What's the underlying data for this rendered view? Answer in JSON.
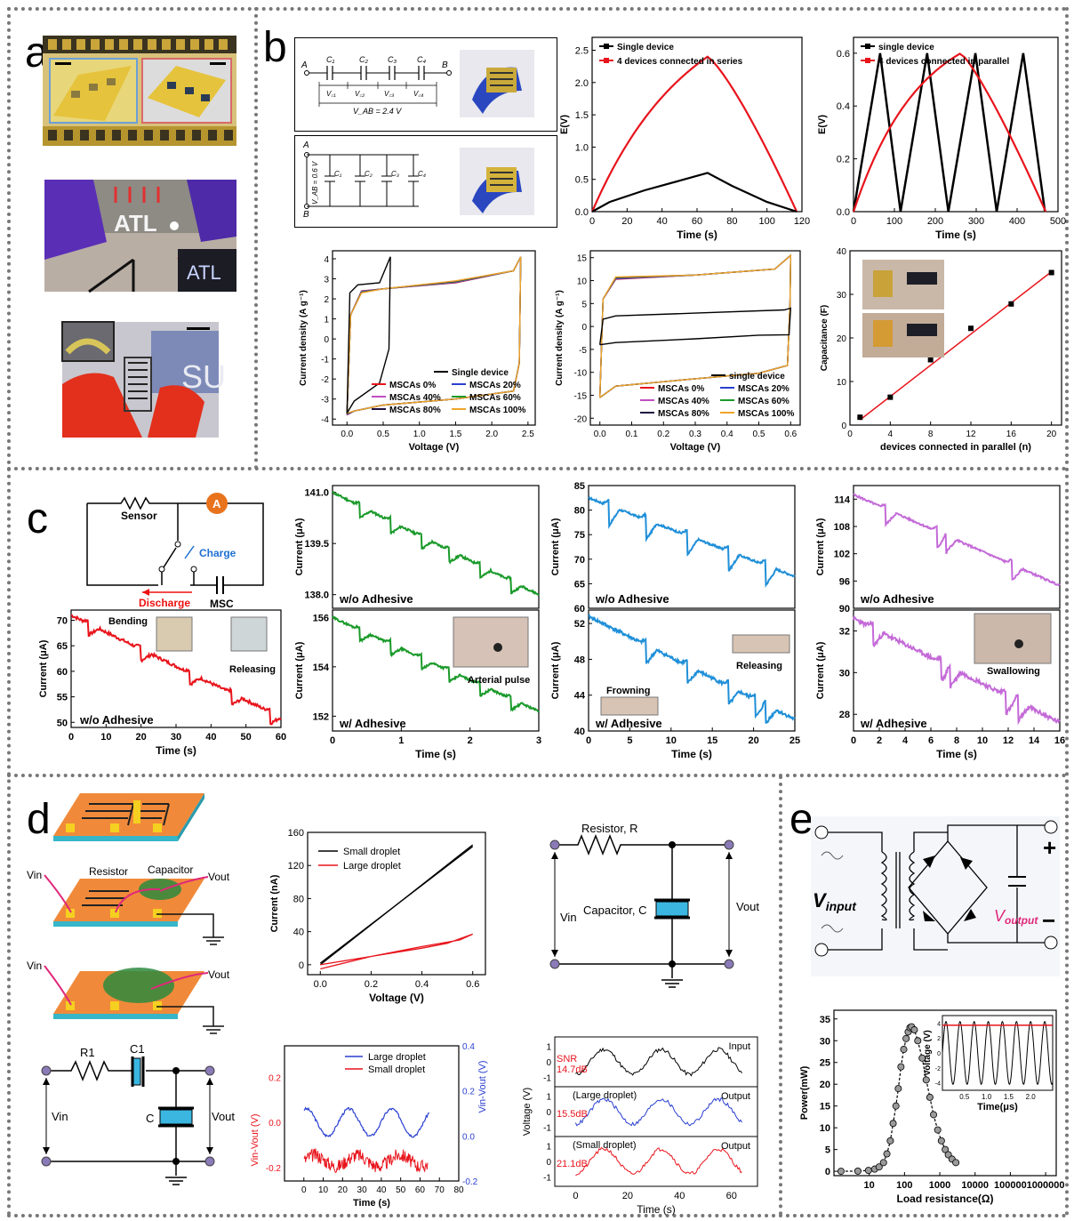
{
  "panel_labels": [
    "a",
    "b",
    "c",
    "d",
    "e"
  ],
  "colors": {
    "black": "#000000",
    "red": "#e8141c",
    "green": "#1a9a2a",
    "blue": "#1f8fd8",
    "purple": "#b153d6",
    "purple_line": "#c46ad8",
    "orange": "#f0a52a"
  },
  "a": {
    "photo1": {
      "desc_icon": "flexible-electrode-strip-photo"
    },
    "photo2": {
      "inset_text": "ATL",
      "main_text": "ATL"
    },
    "photo3": {
      "watermark": "SU"
    }
  },
  "b": {
    "circuit_series": {
      "A": "A",
      "B": "B",
      "caps": [
        "C₁",
        "C₂",
        "C₃",
        "C₄"
      ],
      "vcs": [
        "V꜀₁",
        "V꜀₂",
        "V꜀₃",
        "V꜀₄"
      ],
      "vab": "V_AB = 2.4 V"
    },
    "circuit_parallel": {
      "A": "A",
      "B": "B",
      "vab": "V_AB = 0.6 V",
      "caps": [
        "C₁",
        "C₂",
        "C₃",
        "C₄"
      ]
    },
    "gcd_series": {
      "legend": [
        "Single device",
        "4 devices connected in series"
      ],
      "xlabel": "Time (s)",
      "ylabel": "E(V)",
      "xticks": [
        "0",
        "20",
        "40",
        "60",
        "80",
        "100",
        "120"
      ],
      "yticks": [
        "0.0",
        "0.5",
        "1.0",
        "1.5",
        "2.0",
        "2.5"
      ]
    },
    "gcd_parallel": {
      "legend": [
        "single device",
        "4 devices connected in parallel"
      ],
      "xlabel": "Time (s)",
      "ylabel": "E(V)",
      "xticks": [
        "0",
        "100",
        "200",
        "300",
        "400",
        "500"
      ],
      "yticks": [
        "0.0",
        "0.2",
        "0.4",
        "0.6"
      ]
    },
    "cv_series": {
      "xlabel": "Voltage (V)",
      "ylabel": "Current density (A g⁻¹)",
      "xticks": [
        "0.0",
        "0.5",
        "1.0",
        "1.5",
        "2.0",
        "2.5"
      ],
      "yticks": [
        "-4",
        "-3",
        "-2",
        "-1",
        "0",
        "1",
        "2",
        "3",
        "4"
      ],
      "legend": [
        "Single device",
        "MSCAs 0%",
        "MSCAs 20%",
        "MSCAs 40%",
        "MSCAs 60%",
        "MSCAs 80%",
        "MSCAs 100%"
      ]
    },
    "cv_parallel": {
      "xlabel": "Voltage (V)",
      "ylabel": "Current density (A g⁻¹)",
      "xticks": [
        "0.0",
        "0.1",
        "0.2",
        "0.3",
        "0.4",
        "0.5",
        "0.6"
      ],
      "yticks": [
        "-20",
        "-15",
        "-10",
        "-5",
        "0",
        "5",
        "10",
        "15"
      ],
      "legend": [
        "single device",
        "MSCAs 0%",
        "MSCAs 20%",
        "MSCAs 40%",
        "MSCAs 60%",
        "MSCAs 80%",
        "MSCAs 100%"
      ]
    },
    "cap_vs_n": {
      "xlabel": "devices connected in parallel (n)",
      "ylabel": "Capacitance (F)",
      "xticks": [
        "0",
        "4",
        "8",
        "12",
        "16",
        "20"
      ],
      "yticks": [
        "0",
        "10",
        "20",
        "30",
        "40"
      ]
    }
  },
  "c": {
    "circuit": {
      "sensor": "Sensor",
      "ammeter": "A",
      "charge": "Charge",
      "discharge": "Discharge",
      "msc": "MSC"
    },
    "plot1": {
      "ylabel": "Current (μA)",
      "xlabel": "Time (s)",
      "xticks": [
        "0",
        "10",
        "20",
        "30",
        "40",
        "50",
        "60"
      ],
      "yticks": [
        "50",
        "55",
        "60",
        "65",
        "70"
      ],
      "tag": "w/o Adhesive",
      "ann": [
        "Bending",
        "Releasing"
      ]
    },
    "plot2_top": {
      "ylabel": "Current (μA)",
      "yticks": [
        "138.0",
        "139.5",
        "141.0"
      ],
      "tag": "w/o Adhesive"
    },
    "plot2_bot": {
      "ylabel": "Current (μA)",
      "xlabel": "Time (s)",
      "xticks": [
        "0",
        "1",
        "2",
        "3"
      ],
      "yticks": [
        "152",
        "154",
        "156"
      ],
      "tag": "w/ Adhesive",
      "ann": [
        "Arterial pulse"
      ]
    },
    "plot3_top": {
      "ylabel": "Current (μA)",
      "yticks": [
        "60",
        "65",
        "70",
        "75",
        "80",
        "85"
      ],
      "tag": "w/o Adhesive"
    },
    "plot3_bot": {
      "ylabel": "Current (μA)",
      "xlabel": "Time (s)",
      "xticks": [
        "0",
        "5",
        "10",
        "15",
        "20",
        "25"
      ],
      "yticks": [
        "40",
        "44",
        "48",
        "52"
      ],
      "tag": "w/ Adhesive",
      "ann": [
        "Frowning",
        "Releasing"
      ]
    },
    "plot4_top": {
      "ylabel": "Current (μA)",
      "yticks": [
        "90",
        "96",
        "102",
        "108",
        "114"
      ],
      "tag": "w/o Adhesive"
    },
    "plot4_bot": {
      "ylabel": "Current (μA)",
      "xlabel": "Time (s)",
      "xticks": [
        "0",
        "2",
        "4",
        "6",
        "8",
        "10",
        "12",
        "14",
        "16"
      ],
      "yticks": [
        "28",
        "30",
        "32"
      ],
      "tag": "w/ Adhesive",
      "ann": [
        "Swallowing"
      ]
    }
  },
  "d": {
    "device_labels": {
      "vin": "Vin",
      "resistor": "Resistor",
      "capacitor": "Capacitor",
      "vout": "Vout"
    },
    "iv": {
      "legend": [
        "Small droplet",
        "Large droplet"
      ],
      "xlabel": "Voltage (V)",
      "ylabel": "Current (nA)",
      "xticks": [
        "0.0",
        "0.2",
        "0.4",
        "0.6"
      ],
      "yticks": [
        "0",
        "40",
        "80",
        "120",
        "160"
      ]
    },
    "rc_circuit": {
      "resistor": "Resistor, R",
      "capacitor": "Capacitor, C",
      "vin": "Vin",
      "vout": "Vout"
    },
    "rc_small": {
      "r1": "R1",
      "c1": "C1",
      "c": "C",
      "vin": "Vin",
      "vout": "Vout"
    },
    "vdiff": {
      "legend": [
        "Large droplet",
        "Small droplet"
      ],
      "xlabel": "Time (s)",
      "ylabel_left": "Vin-Vout (V)",
      "ylabel_right": "Vin-Vout (V)",
      "xticks": [
        "0",
        "10",
        "20",
        "30",
        "40",
        "50",
        "60",
        "70",
        "80"
      ],
      "yticks_left": [
        "-0.2",
        "0.0",
        "0.2"
      ],
      "yticks_right": [
        "-0.2",
        "0.0",
        "0.2",
        "0.4"
      ]
    },
    "snr": {
      "ylabel": "Voltage (V)",
      "xlabel": "Time (s)",
      "xticks": [
        "0",
        "20",
        "40",
        "60"
      ],
      "rows": [
        {
          "label": "Input",
          "sub": "",
          "snr": "SNR\n14.7dB"
        },
        {
          "label": "Output",
          "sub": "(Large droplet)",
          "snr": "15.5dB"
        },
        {
          "label": "Output",
          "sub": "(Small droplet)",
          "snr": "21.1dB"
        }
      ],
      "yticks": [
        "-1",
        "0",
        "1"
      ]
    }
  },
  "e": {
    "rectifier": {
      "vin": "V",
      "vin_sub": "input",
      "vout": "V",
      "vout_sub": "output",
      "plus": "+",
      "minus": "−"
    },
    "power": {
      "xlabel": "Load resistance(Ω)",
      "ylabel": "Power(mW)",
      "xticks": [
        "10",
        "100",
        "1000",
        "10000",
        "100000",
        "1000000"
      ],
      "yticks": [
        "0",
        "5",
        "10",
        "15",
        "20",
        "25",
        "30",
        "35"
      ],
      "inset_xlabel": "Time(μs)",
      "inset_ylabel": "Voltage (V)",
      "inset_xticks": [
        "0.5",
        "1.0",
        "1.5",
        "2.0"
      ],
      "inset_yticks": [
        "-4",
        "-2",
        "0",
        "2",
        "4"
      ]
    }
  }
}
